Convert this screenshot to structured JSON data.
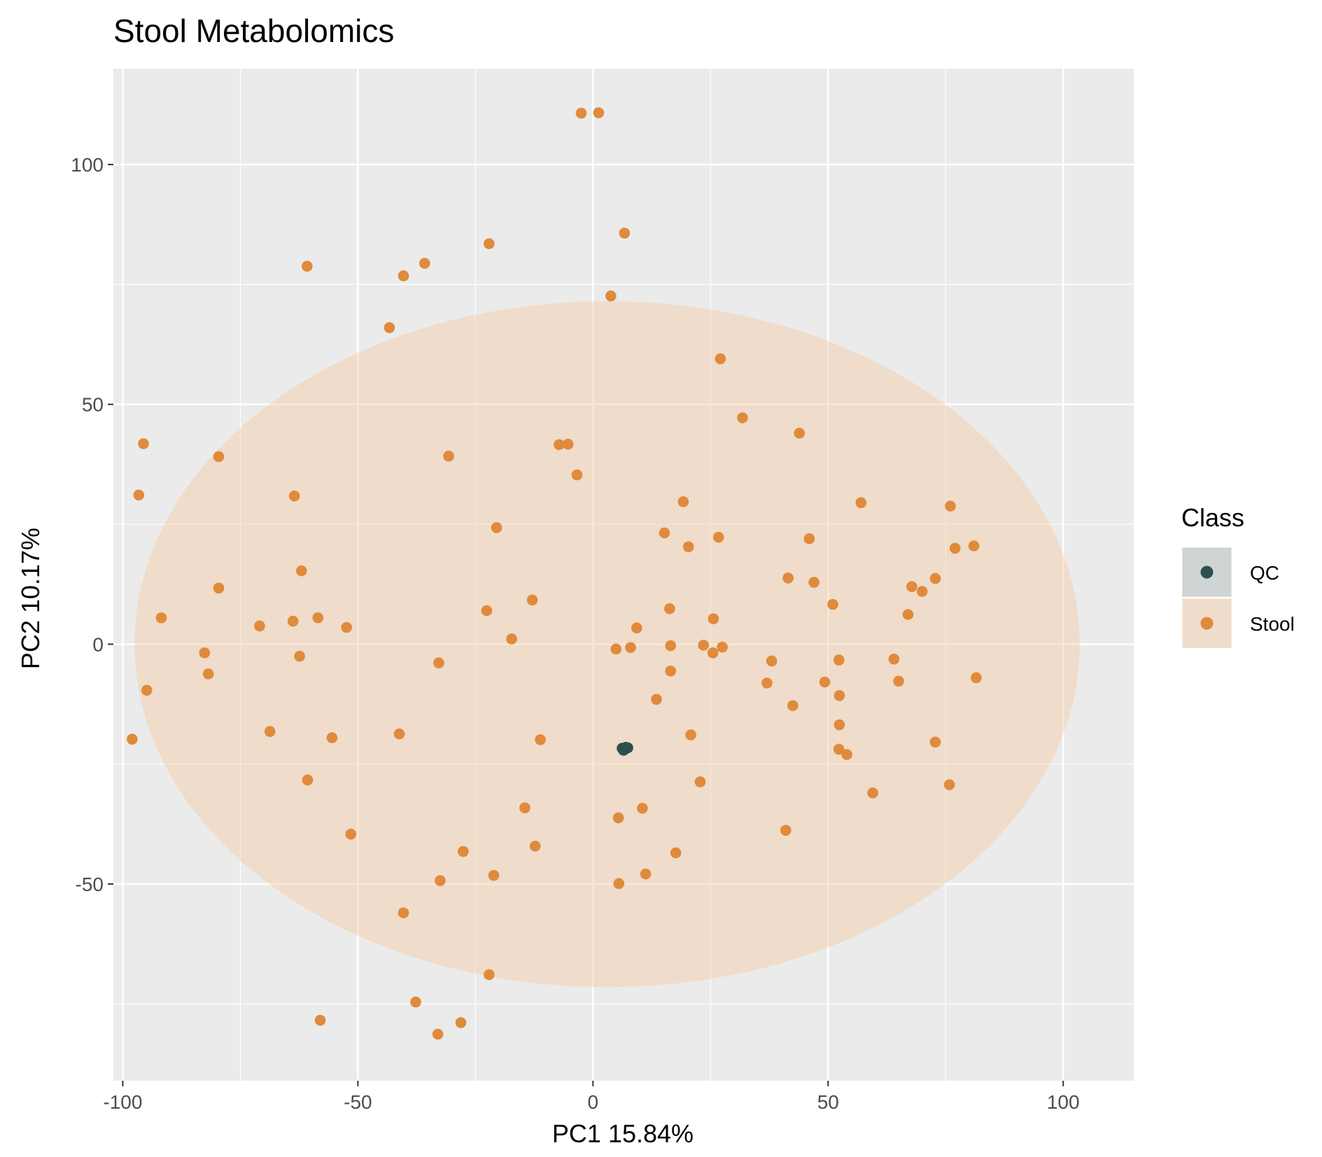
{
  "chart_data": {
    "type": "scatter",
    "title": "Stool Metabolomics",
    "xlabel": "PC1 15.84%",
    "ylabel": "PC2 10.17%",
    "xlim": [
      -102,
      115
    ],
    "ylim": [
      -91,
      120
    ],
    "x_ticks": [
      -100,
      -50,
      0,
      50,
      100
    ],
    "x_tick_labels": [
      "-100",
      "-50",
      "0",
      "50",
      "100"
    ],
    "y_ticks": [
      -50,
      0,
      50,
      100
    ],
    "y_tick_labels": [
      "-50",
      "0",
      "50",
      "100"
    ],
    "grid": true,
    "legend": {
      "title": "Class",
      "placement": "right",
      "entries": [
        {
          "label": "QC",
          "color": "#2f4f4f"
        },
        {
          "label": "Stool",
          "color": "#e08a3c"
        }
      ]
    },
    "ellipse": {
      "series": "Stool",
      "center": [
        3,
        0
      ],
      "radius_x": 100.5,
      "radius_y": 71.5,
      "color": "#f3c9a2",
      "opacity": 0.45
    },
    "series": [
      {
        "name": "QC",
        "color": "#2f4f4f",
        "points": [
          [
            6.2,
            -21.7
          ],
          [
            6.8,
            -21.9
          ],
          [
            7.4,
            -21.6
          ],
          [
            6.5,
            -22.1
          ],
          [
            7.0,
            -21.5
          ]
        ]
      },
      {
        "name": "Stool",
        "color": "#e08a3c",
        "points": [
          [
            -2.5,
            110.7
          ],
          [
            1.2,
            110.8
          ],
          [
            6.7,
            85.7
          ],
          [
            -22.1,
            83.5
          ],
          [
            -60.8,
            78.8
          ],
          [
            -40.3,
            76.8
          ],
          [
            -35.8,
            79.4
          ],
          [
            3.8,
            72.6
          ],
          [
            -43.3,
            66.0
          ],
          [
            27.1,
            59.5
          ],
          [
            31.8,
            47.2
          ],
          [
            -95.6,
            41.8
          ],
          [
            -79.6,
            39.1
          ],
          [
            -30.7,
            39.2
          ],
          [
            -7.2,
            41.6
          ],
          [
            -5.3,
            41.7
          ],
          [
            -3.4,
            35.3
          ],
          [
            43.9,
            44.0
          ],
          [
            -96.6,
            31.1
          ],
          [
            -63.5,
            30.9
          ],
          [
            19.2,
            29.7
          ],
          [
            57.0,
            29.5
          ],
          [
            76.0,
            28.8
          ],
          [
            -20.5,
            24.3
          ],
          [
            15.2,
            23.2
          ],
          [
            26.7,
            22.3
          ],
          [
            46.0,
            22.0
          ],
          [
            20.3,
            20.3
          ],
          [
            77.0,
            20.0
          ],
          [
            81.0,
            20.5
          ],
          [
            -62.0,
            15.3
          ],
          [
            41.5,
            13.8
          ],
          [
            47.0,
            12.9
          ],
          [
            72.8,
            13.7
          ],
          [
            67.8,
            12.0
          ],
          [
            70.0,
            11.0
          ],
          [
            -79.6,
            11.7
          ],
          [
            -12.9,
            9.2
          ],
          [
            51.0,
            8.3
          ],
          [
            -22.6,
            7.0
          ],
          [
            16.3,
            7.4
          ],
          [
            67.0,
            6.2
          ],
          [
            25.6,
            5.3
          ],
          [
            -91.8,
            5.5
          ],
          [
            -58.5,
            5.5
          ],
          [
            -63.8,
            4.8
          ],
          [
            -70.9,
            3.8
          ],
          [
            -52.4,
            3.5
          ],
          [
            9.3,
            3.4
          ],
          [
            -17.3,
            1.1
          ],
          [
            16.5,
            -0.3
          ],
          [
            23.5,
            -0.2
          ],
          [
            27.5,
            -0.6
          ],
          [
            4.9,
            -1.0
          ],
          [
            8.0,
            -0.7
          ],
          [
            25.5,
            -1.8
          ],
          [
            -82.6,
            -1.8
          ],
          [
            -62.4,
            -2.5
          ],
          [
            38.0,
            -3.5
          ],
          [
            52.3,
            -3.3
          ],
          [
            64.0,
            -3.1
          ],
          [
            -32.8,
            -3.9
          ],
          [
            16.5,
            -5.6
          ],
          [
            -81.8,
            -6.2
          ],
          [
            37.0,
            -8.1
          ],
          [
            49.3,
            -7.9
          ],
          [
            65.0,
            -7.7
          ],
          [
            81.5,
            -7.0
          ],
          [
            -94.9,
            -9.6
          ],
          [
            52.4,
            -10.7
          ],
          [
            13.5,
            -11.5
          ],
          [
            42.5,
            -12.8
          ],
          [
            52.4,
            -16.8
          ],
          [
            -68.7,
            -18.2
          ],
          [
            -41.2,
            -18.7
          ],
          [
            20.8,
            -18.9
          ],
          [
            -55.5,
            -19.5
          ],
          [
            -11.2,
            -19.9
          ],
          [
            -98.0,
            -19.8
          ],
          [
            72.8,
            -20.4
          ],
          [
            52.3,
            -21.9
          ],
          [
            54.0,
            -23.0
          ],
          [
            -60.7,
            -28.3
          ],
          [
            22.8,
            -28.7
          ],
          [
            75.8,
            -29.3
          ],
          [
            59.5,
            -31.0
          ],
          [
            -14.5,
            -34.1
          ],
          [
            10.5,
            -34.2
          ],
          [
            5.4,
            -36.2
          ],
          [
            41.0,
            -38.8
          ],
          [
            -51.5,
            -39.6
          ],
          [
            -12.3,
            -42.1
          ],
          [
            -27.6,
            -43.2
          ],
          [
            17.6,
            -43.5
          ],
          [
            -21.1,
            -48.2
          ],
          [
            -32.5,
            -49.3
          ],
          [
            11.2,
            -47.9
          ],
          [
            5.5,
            -49.9
          ],
          [
            -40.3,
            -56.0
          ],
          [
            -22.1,
            -68.9
          ],
          [
            -37.7,
            -74.6
          ],
          [
            -58.0,
            -78.4
          ],
          [
            -28.1,
            -78.9
          ],
          [
            -33.0,
            -81.3
          ]
        ]
      }
    ]
  }
}
